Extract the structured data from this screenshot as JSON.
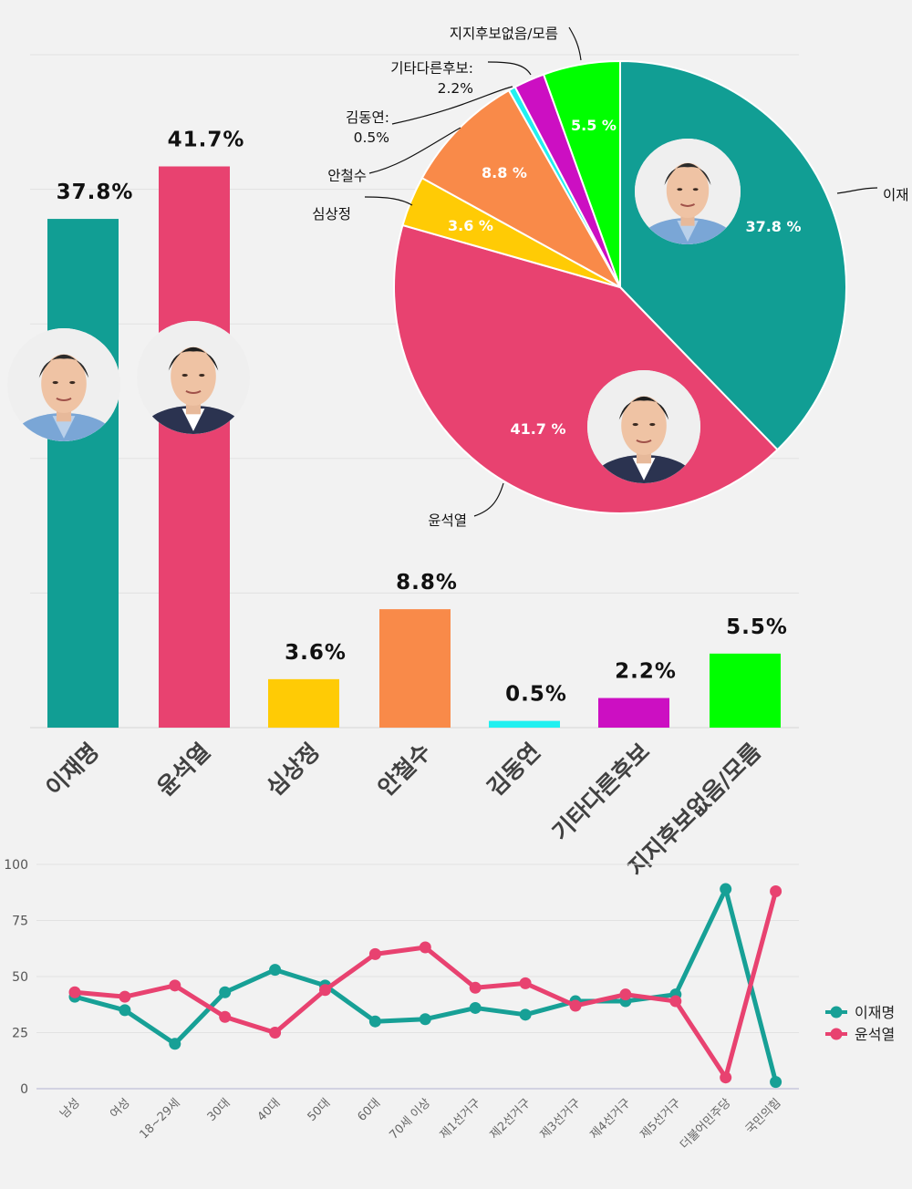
{
  "chart_data": [
    {
      "type": "bar",
      "categories": [
        "이재명",
        "윤석열",
        "심상정",
        "안철수",
        "김동연",
        "기타다른후보",
        "지지후보없음/모름"
      ],
      "values": [
        37.8,
        41.7,
        3.6,
        8.8,
        0.5,
        2.2,
        5.5
      ],
      "data_labels": [
        "37.8%",
        "41.7%",
        "3.6%",
        "8.8%",
        "0.5%",
        "2.2%",
        "5.5%"
      ],
      "colors": [
        "#119e94",
        "#e84270",
        "#ffcb05",
        "#f98a49",
        "#21f0f0",
        "#cc0fc2",
        "#00ff00"
      ],
      "ylim": [
        0,
        50
      ],
      "grid": true,
      "title": "",
      "xlabel": "",
      "ylabel": ""
    },
    {
      "type": "pie",
      "labels": [
        "이재명",
        "윤석열",
        "심상정",
        "안철수",
        "김동연",
        "기타다른후보",
        "지지후보없음/모름"
      ],
      "values": [
        37.8,
        41.7,
        3.6,
        8.8,
        0.5,
        2.2,
        5.5
      ],
      "slice_labels": [
        "37.8 %",
        "41.7 %",
        "3.6 %",
        "8.8 %",
        "",
        "",
        "5.5 %"
      ],
      "callouts": [
        {
          "index": 0,
          "lines": [
            "이재"
          ]
        },
        {
          "index": 1,
          "lines": [
            "윤석열"
          ]
        },
        {
          "index": 2,
          "lines": [
            "심상정"
          ]
        },
        {
          "index": 3,
          "lines": [
            "안철수"
          ]
        },
        {
          "index": 4,
          "lines": [
            "김동연:",
            "0.5%"
          ]
        },
        {
          "index": 5,
          "lines": [
            "기타다른후보:",
            "2.2%"
          ]
        },
        {
          "index": 6,
          "lines": [
            "지지후보없음/모름"
          ]
        }
      ],
      "colors": [
        "#119e94",
        "#e84270",
        "#ffcb05",
        "#f98a49",
        "#21f0f0",
        "#cc0fc2",
        "#00ff00"
      ],
      "title": ""
    },
    {
      "type": "line",
      "categories": [
        "남성",
        "여성",
        "18~29세",
        "30대",
        "40대",
        "50대",
        "60대",
        "70세 이상",
        "제1선거구",
        "제2선거구",
        "제3선거구",
        "제4선거구",
        "제5선거구",
        "더불어민주당",
        "국민의힘"
      ],
      "series": [
        {
          "name": "이재명",
          "color": "#17a096",
          "values": [
            41,
            35,
            20,
            43,
            53,
            46,
            30,
            31,
            36,
            33,
            39,
            39,
            42,
            89,
            3
          ]
        },
        {
          "name": "윤석열",
          "color": "#e84270",
          "values": [
            43,
            41,
            46,
            32,
            25,
            44,
            60,
            63,
            45,
            47,
            37,
            42,
            39,
            5,
            88
          ]
        }
      ],
      "ylim": [
        0,
        100
      ],
      "yticks": [
        "0",
        "25",
        "50",
        "75",
        "100"
      ],
      "legend_position": "right",
      "grid": true,
      "title": "",
      "xlabel": "",
      "ylabel": ""
    }
  ]
}
